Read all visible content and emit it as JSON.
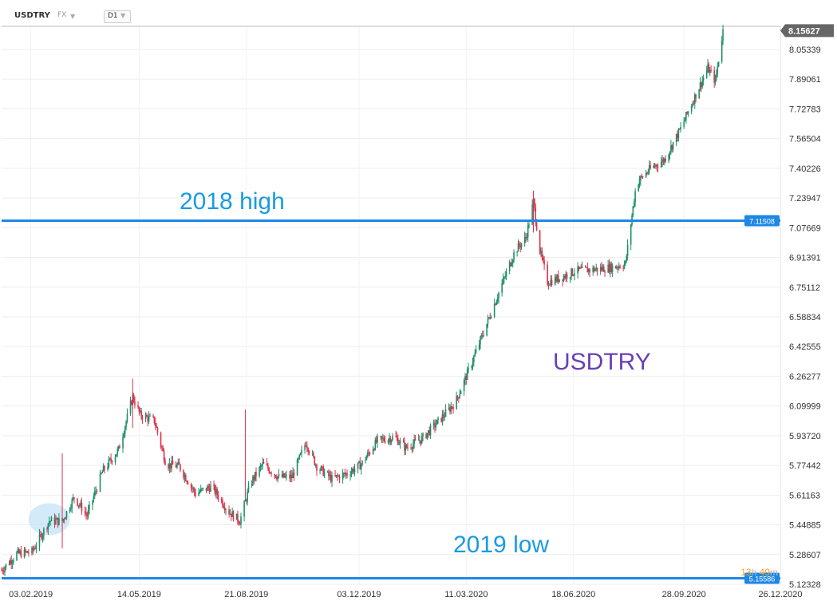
{
  "header": {
    "symbol": "USDTRY",
    "market": "FX",
    "timeframe": "D1"
  },
  "countdown": {
    "hours": "13",
    "hours_unit": "h",
    "minutes": "49",
    "minutes_unit": "m"
  },
  "colors": {
    "up": "#1f8f6b",
    "down": "#e0314b",
    "level_line": "#1e88e5",
    "annotation": "#1a9be0",
    "title_annotation": "#6a3fb5"
  },
  "chart_data": {
    "type": "candlestick",
    "instrument": "USDTRY",
    "timeframe": "D1",
    "xlim": [
      "2019-01-07",
      "2020-12-26"
    ],
    "ylim": [
      5.12328,
      8.18
    ],
    "x_tick_labels": [
      "03.02.2019",
      "14.05.2019",
      "21.08.2019",
      "03.12.2019",
      "11.03.2020",
      "18.06.2020",
      "28.09.2020",
      "26.12.2020"
    ],
    "y_tick_labels": [
      "8.05339",
      "7.89061",
      "7.72783",
      "7.56504",
      "7.40226",
      "7.23947",
      "7.07669",
      "6.91391",
      "6.75112",
      "6.58834",
      "6.42555",
      "6.26277",
      "6.09999",
      "5.93720",
      "5.77442",
      "5.61163",
      "5.44885",
      "5.28607",
      "5.12328"
    ],
    "last_price": {
      "label": "8.15627",
      "value": 8.15627
    },
    "horizontal_levels": [
      {
        "label": "7.11508",
        "value": 7.11508,
        "annotation": "2018 high"
      },
      {
        "label": "5.15586",
        "value": 5.15586,
        "annotation": "2019 low"
      }
    ],
    "annotations": [
      "2018 high",
      "2019 low",
      "USDTRY"
    ],
    "highlight_region": {
      "date": "2019-02-20",
      "price_center": 5.48
    },
    "series_close": [
      {
        "date": "2019-01-07",
        "close": 5.2
      },
      {
        "date": "2019-01-21",
        "close": 5.29
      },
      {
        "date": "2019-02-04",
        "close": 5.3
      },
      {
        "date": "2019-02-20",
        "close": 5.47
      },
      {
        "date": "2019-03-04",
        "close": 5.47
      },
      {
        "date": "2019-03-15",
        "close": 5.6
      },
      {
        "date": "2019-03-27",
        "close": 5.5
      },
      {
        "date": "2019-04-10",
        "close": 5.74
      },
      {
        "date": "2019-04-25",
        "close": 5.86
      },
      {
        "date": "2019-05-08",
        "close": 6.15
      },
      {
        "date": "2019-05-15",
        "close": 6.05
      },
      {
        "date": "2019-05-28",
        "close": 6.02
      },
      {
        "date": "2019-06-08",
        "close": 5.78
      },
      {
        "date": "2019-06-20",
        "close": 5.77
      },
      {
        "date": "2019-07-05",
        "close": 5.62
      },
      {
        "date": "2019-07-20",
        "close": 5.66
      },
      {
        "date": "2019-08-05",
        "close": 5.52
      },
      {
        "date": "2019-08-15",
        "close": 5.47
      },
      {
        "date": "2019-08-25",
        "close": 5.68
      },
      {
        "date": "2019-09-05",
        "close": 5.78
      },
      {
        "date": "2019-09-20",
        "close": 5.71
      },
      {
        "date": "2019-10-02",
        "close": 5.71
      },
      {
        "date": "2019-10-15",
        "close": 5.9
      },
      {
        "date": "2019-10-25",
        "close": 5.77
      },
      {
        "date": "2019-11-08",
        "close": 5.7
      },
      {
        "date": "2019-11-22",
        "close": 5.73
      },
      {
        "date": "2019-12-05",
        "close": 5.78
      },
      {
        "date": "2019-12-20",
        "close": 5.91
      },
      {
        "date": "2020-01-05",
        "close": 5.93
      },
      {
        "date": "2020-01-15",
        "close": 5.87
      },
      {
        "date": "2020-01-30",
        "close": 5.92
      },
      {
        "date": "2020-02-15",
        "close": 6.02
      },
      {
        "date": "2020-03-01",
        "close": 6.12
      },
      {
        "date": "2020-03-15",
        "close": 6.32
      },
      {
        "date": "2020-03-28",
        "close": 6.52
      },
      {
        "date": "2020-04-10",
        "close": 6.72
      },
      {
        "date": "2020-04-25",
        "close": 6.95
      },
      {
        "date": "2020-05-05",
        "close": 7.02
      },
      {
        "date": "2020-05-12",
        "close": 7.22
      },
      {
        "date": "2020-05-18",
        "close": 6.95
      },
      {
        "date": "2020-05-25",
        "close": 6.78
      },
      {
        "date": "2020-06-05",
        "close": 6.8
      },
      {
        "date": "2020-06-20",
        "close": 6.84
      },
      {
        "date": "2020-07-10",
        "close": 6.85
      },
      {
        "date": "2020-07-25",
        "close": 6.86
      },
      {
        "date": "2020-08-05",
        "close": 6.88
      },
      {
        "date": "2020-08-15",
        "close": 7.32
      },
      {
        "date": "2020-08-28",
        "close": 7.4
      },
      {
        "date": "2020-09-10",
        "close": 7.45
      },
      {
        "date": "2020-09-25",
        "close": 7.62
      },
      {
        "date": "2020-10-10",
        "close": 7.82
      },
      {
        "date": "2020-10-20",
        "close": 7.95
      },
      {
        "date": "2020-10-27",
        "close": 7.88
      },
      {
        "date": "2020-11-03",
        "close": 8.15627
      }
    ]
  }
}
